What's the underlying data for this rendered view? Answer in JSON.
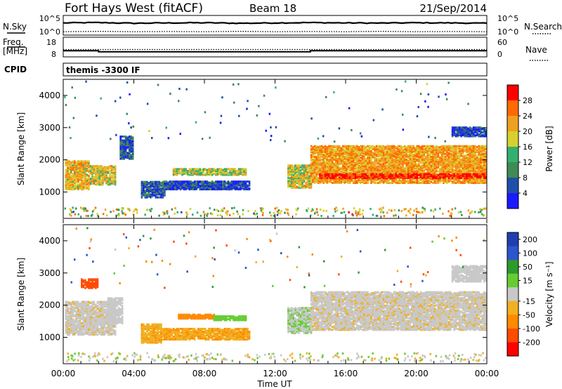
{
  "header": {
    "radar": "Fort Hays West (fitACF)",
    "beam": "Beam 18",
    "date": "21/Sep/2014"
  },
  "colors": {
    "scale_power": [
      "#1a1aff",
      "#1f4fa8",
      "#3f8a55",
      "#33b070",
      "#d7d030",
      "#f0a020",
      "#ff6a00",
      "#ff0000"
    ],
    "scale_velocity": [
      "#1f3fb0",
      "#2d55d0",
      "#2d9a2d",
      "#66cc33",
      "#c8c8c8",
      "#f0b020",
      "#ff8a00",
      "#ff4a00",
      "#ff0000"
    ]
  },
  "chart_data": [
    {
      "type": "line",
      "panel": "noise",
      "left_label": "N.Sky",
      "right_label": "N.Search",
      "left_ticks": [
        "10^5",
        "10^0"
      ],
      "right_ticks": [
        "10^5",
        "10^0"
      ],
      "x": [
        0,
        2,
        4,
        6,
        8,
        10,
        12,
        14,
        16,
        18,
        20,
        22,
        24
      ],
      "series": [
        {
          "values": [
            3.2,
            3.3,
            3.1,
            3.2,
            3.25,
            3.1,
            3.2,
            3.3,
            3.2,
            3.15,
            3.25,
            3.2,
            3.1
          ]
        },
        {
          "values": [
            0.6,
            0.7,
            0.6,
            0.65,
            0.6,
            0.7,
            0.6,
            0.65,
            0.6,
            0.7,
            0.6,
            0.65,
            0.6
          ]
        }
      ]
    },
    {
      "type": "line",
      "panel": "frequency",
      "left_label": "Freq.\n[MHz]",
      "right_label": "Nave",
      "left_ticks": [
        "18",
        "8"
      ],
      "right_ticks": [
        "60",
        "0"
      ],
      "freq_mhz": [
        {
          "x": [
            0,
            2.0
          ],
          "y": 11.0
        },
        {
          "x": [
            2.0,
            14.0
          ],
          "y": 10.4
        },
        {
          "x": [
            14.0,
            24.0
          ],
          "y": 11.0
        }
      ],
      "nave": 22
    },
    {
      "type": "table",
      "panel": "cpid",
      "label": "CPID",
      "program": "themis -3300 IF"
    },
    {
      "type": "heatmap",
      "panel": "power",
      "ylabel": "Slant Range [km]",
      "yticks": [
        1000,
        2000,
        3000,
        4000
      ],
      "ylim": [
        180,
        4500
      ],
      "colorbar_title": "Power [dB]",
      "colorbar_ticks": [
        4,
        8,
        12,
        16,
        20,
        24,
        28
      ],
      "bands": [
        {
          "t": [
            0.1,
            1.5
          ],
          "r": [
            1050,
            1950
          ],
          "level": 0.65
        },
        {
          "t": [
            1.5,
            3.0
          ],
          "r": [
            1200,
            1800
          ],
          "level": 0.6
        },
        {
          "t": [
            3.2,
            4.0
          ],
          "r": [
            2000,
            2700
          ],
          "level": 0.2
        },
        {
          "t": [
            4.4,
            5.7
          ],
          "r": [
            800,
            1300
          ],
          "level": 0.2
        },
        {
          "t": [
            5.7,
            10.5
          ],
          "r": [
            1050,
            1300
          ],
          "level": 0.15
        },
        {
          "t": [
            6.2,
            10.3
          ],
          "r": [
            1500,
            1700
          ],
          "level": 0.55
        },
        {
          "t": [
            12.7,
            14.0
          ],
          "r": [
            1100,
            1800
          ],
          "level": 0.6
        },
        {
          "t": [
            14.0,
            24.0
          ],
          "r": [
            1250,
            2400
          ],
          "level": 0.7
        },
        {
          "t": [
            14.5,
            24.0
          ],
          "r": [
            1400,
            1550
          ],
          "level": 0.92
        },
        {
          "t": [
            22.0,
            24.0
          ],
          "r": [
            2700,
            3000
          ],
          "level": 0.15
        }
      ]
    },
    {
      "type": "heatmap",
      "panel": "velocity",
      "ylabel": "Slant Range [km]",
      "yticks": [
        1000,
        2000,
        3000,
        4000
      ],
      "ylim": [
        180,
        4500
      ],
      "colorbar_title": "Velocity [m s⁻¹]",
      "colorbar_ticks": [
        200,
        100,
        50,
        15,
        -15,
        -50,
        -100,
        -200
      ],
      "bands": [
        {
          "t": [
            0.1,
            3.0
          ],
          "r": [
            1050,
            2100
          ],
          "vel": -5
        },
        {
          "t": [
            2.5,
            3.4
          ],
          "r": [
            1400,
            2200
          ],
          "vel": 0
        },
        {
          "t": [
            4.4,
            5.5
          ],
          "r": [
            800,
            1400
          ],
          "vel": -40
        },
        {
          "t": [
            5.5,
            10.5
          ],
          "r": [
            900,
            1250
          ],
          "vel": -45
        },
        {
          "t": [
            6.5,
            8.5
          ],
          "r": [
            1550,
            1700
          ],
          "vel": -80
        },
        {
          "t": [
            8.5,
            10.3
          ],
          "r": [
            1500,
            1650
          ],
          "vel": 30
        },
        {
          "t": [
            12.7,
            14.0
          ],
          "r": [
            1100,
            1900
          ],
          "vel": 10
        },
        {
          "t": [
            14.0,
            24.0
          ],
          "r": [
            1200,
            2400
          ],
          "vel": -5
        },
        {
          "t": [
            1.0,
            2.0
          ],
          "r": [
            2500,
            2800
          ],
          "vel": -150
        },
        {
          "t": [
            22.0,
            24.0
          ],
          "r": [
            2700,
            3200
          ],
          "vel": 0
        }
      ],
      "xticks": [
        "00:00",
        "04:00",
        "08:00",
        "12:00",
        "16:00",
        "20:00",
        "00:00"
      ],
      "xlabel": "Time UT",
      "xlim": [
        0,
        24
      ]
    }
  ]
}
